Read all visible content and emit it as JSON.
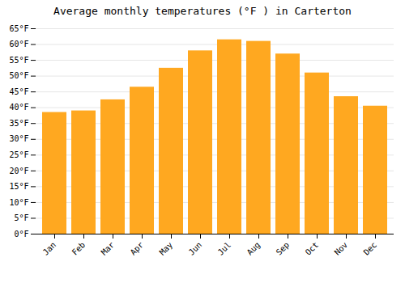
{
  "chart_data": {
    "type": "bar",
    "title": "Average monthly temperatures (°F ) in Carterton",
    "categories": [
      "Jan",
      "Feb",
      "Mar",
      "Apr",
      "May",
      "Jun",
      "Jul",
      "Aug",
      "Sep",
      "Oct",
      "Nov",
      "Dec"
    ],
    "values": [
      38.5,
      39.0,
      42.5,
      46.5,
      52.5,
      58.0,
      61.5,
      61.0,
      57.0,
      51.0,
      43.5,
      40.5
    ],
    "color": "#FFA820",
    "ylim": [
      0,
      65
    ],
    "yticks": [
      {
        "value": 0,
        "label": "0°F"
      },
      {
        "value": 5,
        "label": "5°F"
      },
      {
        "value": 10,
        "label": "10°F"
      },
      {
        "value": 15,
        "label": "15°F"
      },
      {
        "value": 20,
        "label": "20°F"
      },
      {
        "value": 25,
        "label": "25°F"
      },
      {
        "value": 30,
        "label": "30°F"
      },
      {
        "value": 35,
        "label": "35°F"
      },
      {
        "value": 40,
        "label": "40°F"
      },
      {
        "value": 45,
        "label": "45°F"
      },
      {
        "value": 50,
        "label": "50°F"
      },
      {
        "value": 55,
        "label": "55°F"
      },
      {
        "value": 60,
        "label": "60°F"
      },
      {
        "value": 65,
        "label": "65°F"
      }
    ],
    "grid": true
  }
}
